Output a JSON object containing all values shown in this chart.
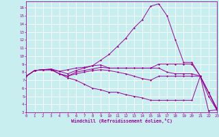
{
  "xlabel": "Windchill (Refroidissement éolien,°C)",
  "background_color": "#c8eef0",
  "line_color": "#990099",
  "grid_color": "#ffffff",
  "xlim": [
    0,
    23
  ],
  "ylim": [
    3,
    16.8
  ],
  "xticks": [
    0,
    1,
    2,
    3,
    4,
    5,
    6,
    7,
    8,
    9,
    10,
    11,
    12,
    13,
    14,
    15,
    16,
    17,
    18,
    19,
    20,
    21,
    22,
    23
  ],
  "yticks": [
    3,
    4,
    5,
    6,
    7,
    8,
    9,
    10,
    11,
    12,
    13,
    14,
    15,
    16
  ],
  "lines": [
    {
      "x": [
        0,
        1,
        2,
        3,
        4,
        5,
        6,
        7,
        8,
        9,
        10,
        11,
        12,
        13,
        14,
        15,
        16,
        17,
        18,
        19,
        20,
        21,
        22,
        23
      ],
      "y": [
        7.5,
        8.2,
        8.3,
        8.3,
        8.1,
        7.8,
        8.2,
        8.5,
        8.8,
        9.5,
        10.2,
        11.2,
        12.2,
        13.5,
        14.5,
        16.2,
        16.5,
        15.0,
        12.0,
        9.2,
        9.2,
        7.5,
        5.5,
        3.5
      ]
    },
    {
      "x": [
        0,
        1,
        2,
        3,
        4,
        5,
        6,
        7,
        8,
        9,
        10,
        11,
        12,
        13,
        14,
        15,
        16,
        17,
        18,
        19,
        20,
        21,
        22,
        23
      ],
      "y": [
        7.5,
        8.2,
        8.3,
        8.4,
        8.1,
        8.3,
        8.5,
        8.6,
        8.8,
        8.9,
        8.5,
        8.5,
        8.5,
        8.5,
        8.5,
        8.5,
        9.0,
        9.0,
        9.0,
        9.0,
        9.0,
        7.5,
        5.0,
        3.3
      ]
    },
    {
      "x": [
        0,
        1,
        2,
        3,
        4,
        5,
        6,
        7,
        8,
        9,
        10,
        11,
        12,
        13,
        14,
        15,
        16,
        17,
        18,
        19,
        20,
        21,
        22,
        23
      ],
      "y": [
        7.5,
        8.2,
        8.3,
        8.3,
        7.8,
        7.5,
        8.0,
        8.2,
        8.4,
        8.6,
        8.5,
        8.5,
        8.5,
        8.5,
        8.5,
        8.5,
        8.5,
        8.0,
        7.8,
        7.8,
        7.8,
        7.5,
        5.5,
        3.3
      ]
    },
    {
      "x": [
        0,
        1,
        2,
        3,
        4,
        5,
        6,
        7,
        8,
        9,
        10,
        11,
        12,
        13,
        14,
        15,
        16,
        17,
        18,
        19,
        20,
        21,
        22,
        23
      ],
      "y": [
        7.5,
        8.2,
        8.3,
        8.3,
        7.8,
        7.5,
        7.8,
        8.0,
        8.2,
        8.3,
        8.2,
        8.0,
        7.8,
        7.5,
        7.2,
        7.0,
        7.5,
        7.5,
        7.5,
        7.5,
        7.5,
        7.5,
        5.5,
        3.5
      ]
    },
    {
      "x": [
        0,
        1,
        2,
        3,
        4,
        5,
        6,
        7,
        8,
        9,
        10,
        11,
        12,
        13,
        14,
        15,
        16,
        17,
        18,
        19,
        20,
        21,
        22,
        23
      ],
      "y": [
        7.5,
        8.2,
        8.3,
        8.3,
        7.8,
        7.3,
        7.0,
        6.5,
        6.0,
        5.8,
        5.5,
        5.5,
        5.2,
        5.0,
        4.8,
        4.5,
        4.5,
        4.5,
        4.5,
        4.5,
        4.5,
        7.5,
        3.2,
        3.3
      ]
    }
  ]
}
